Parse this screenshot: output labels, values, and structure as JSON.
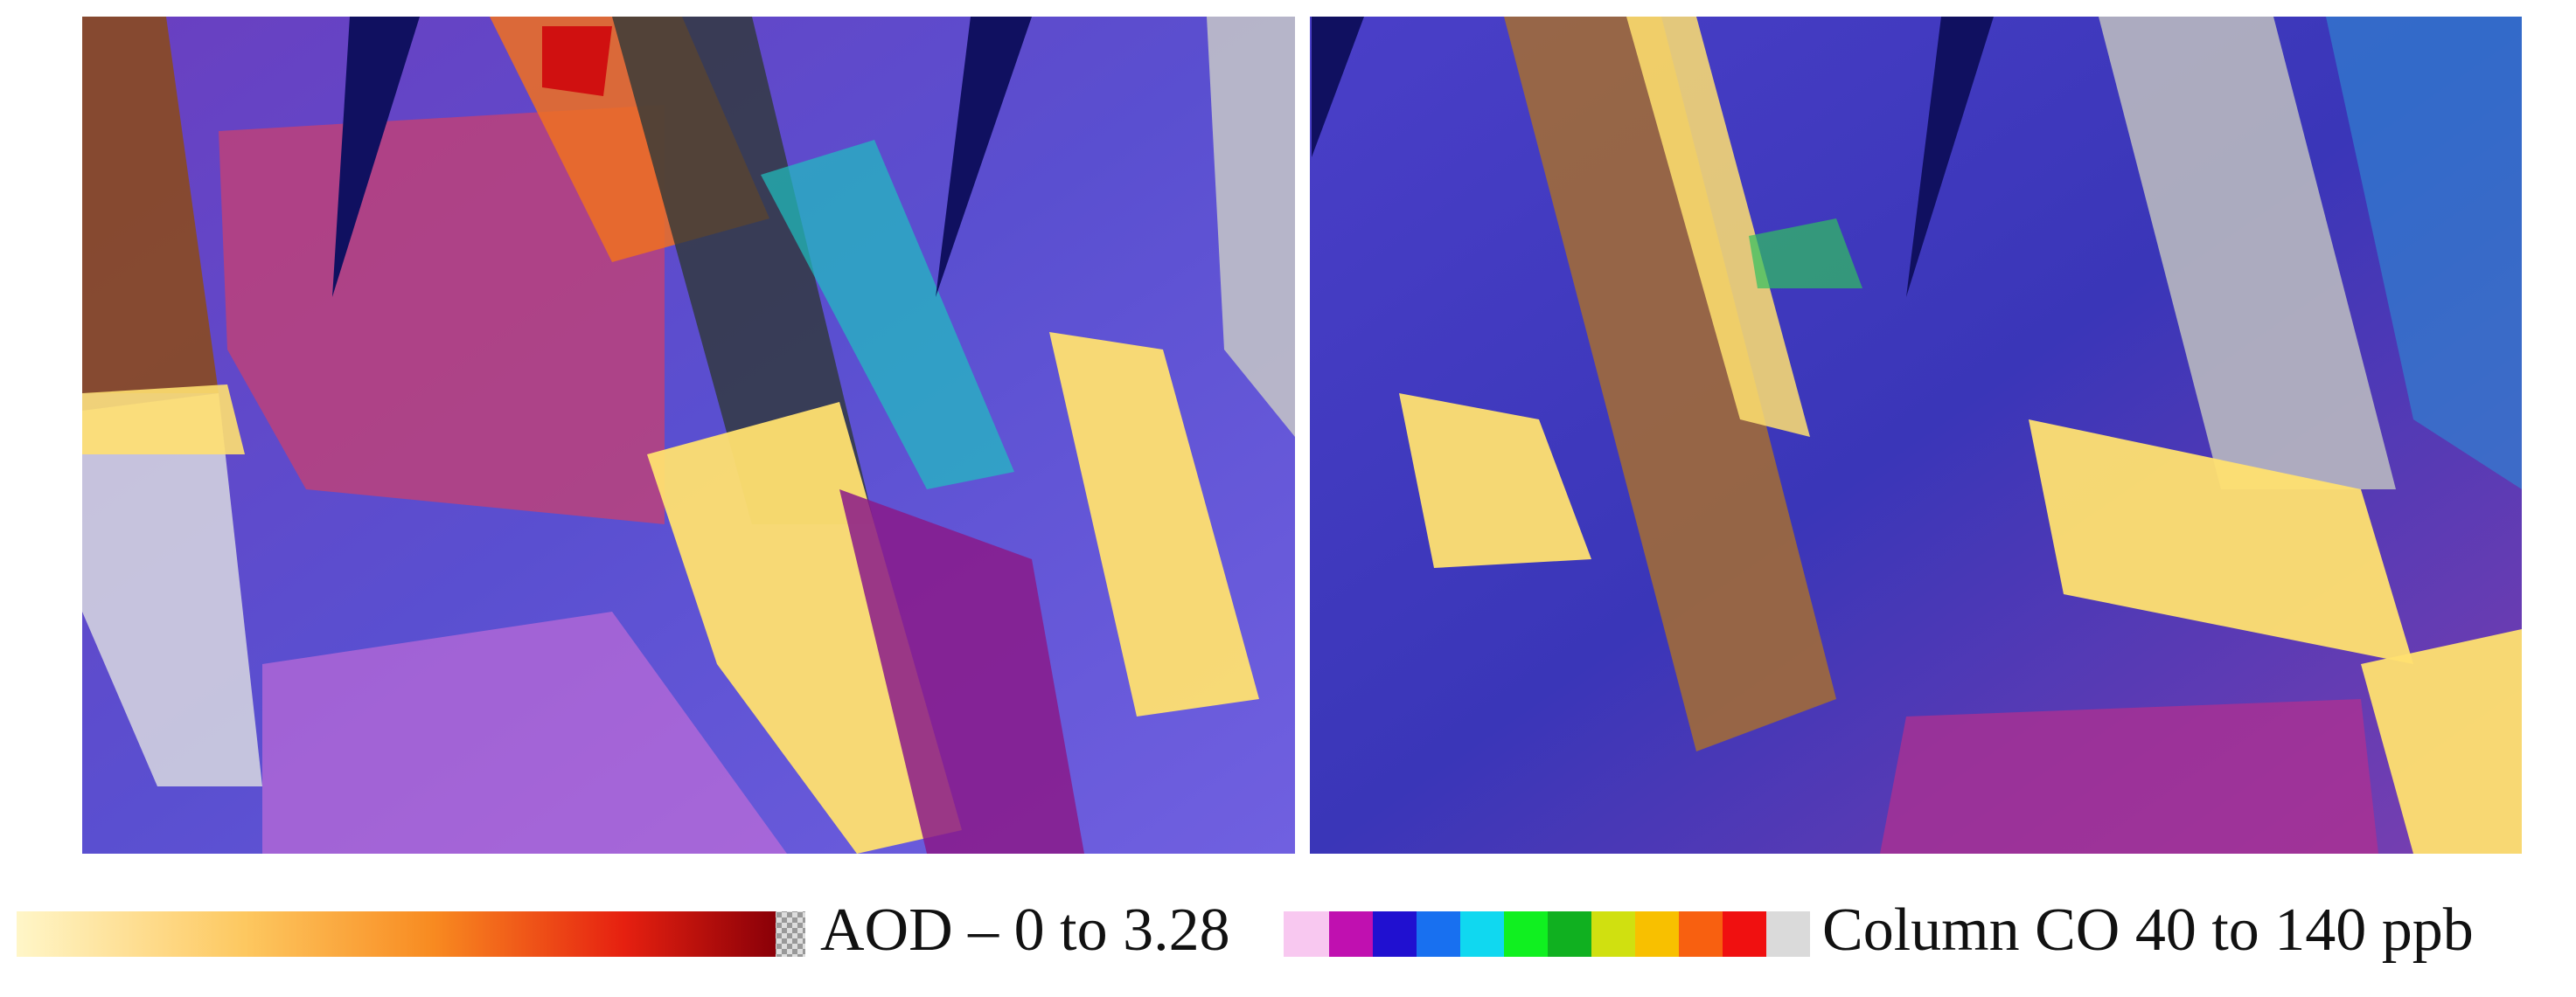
{
  "legend": {
    "aod_label": "AOD – 0 to 3.28",
    "co_label": "Column CO 40 to 140 ppb"
  }
}
